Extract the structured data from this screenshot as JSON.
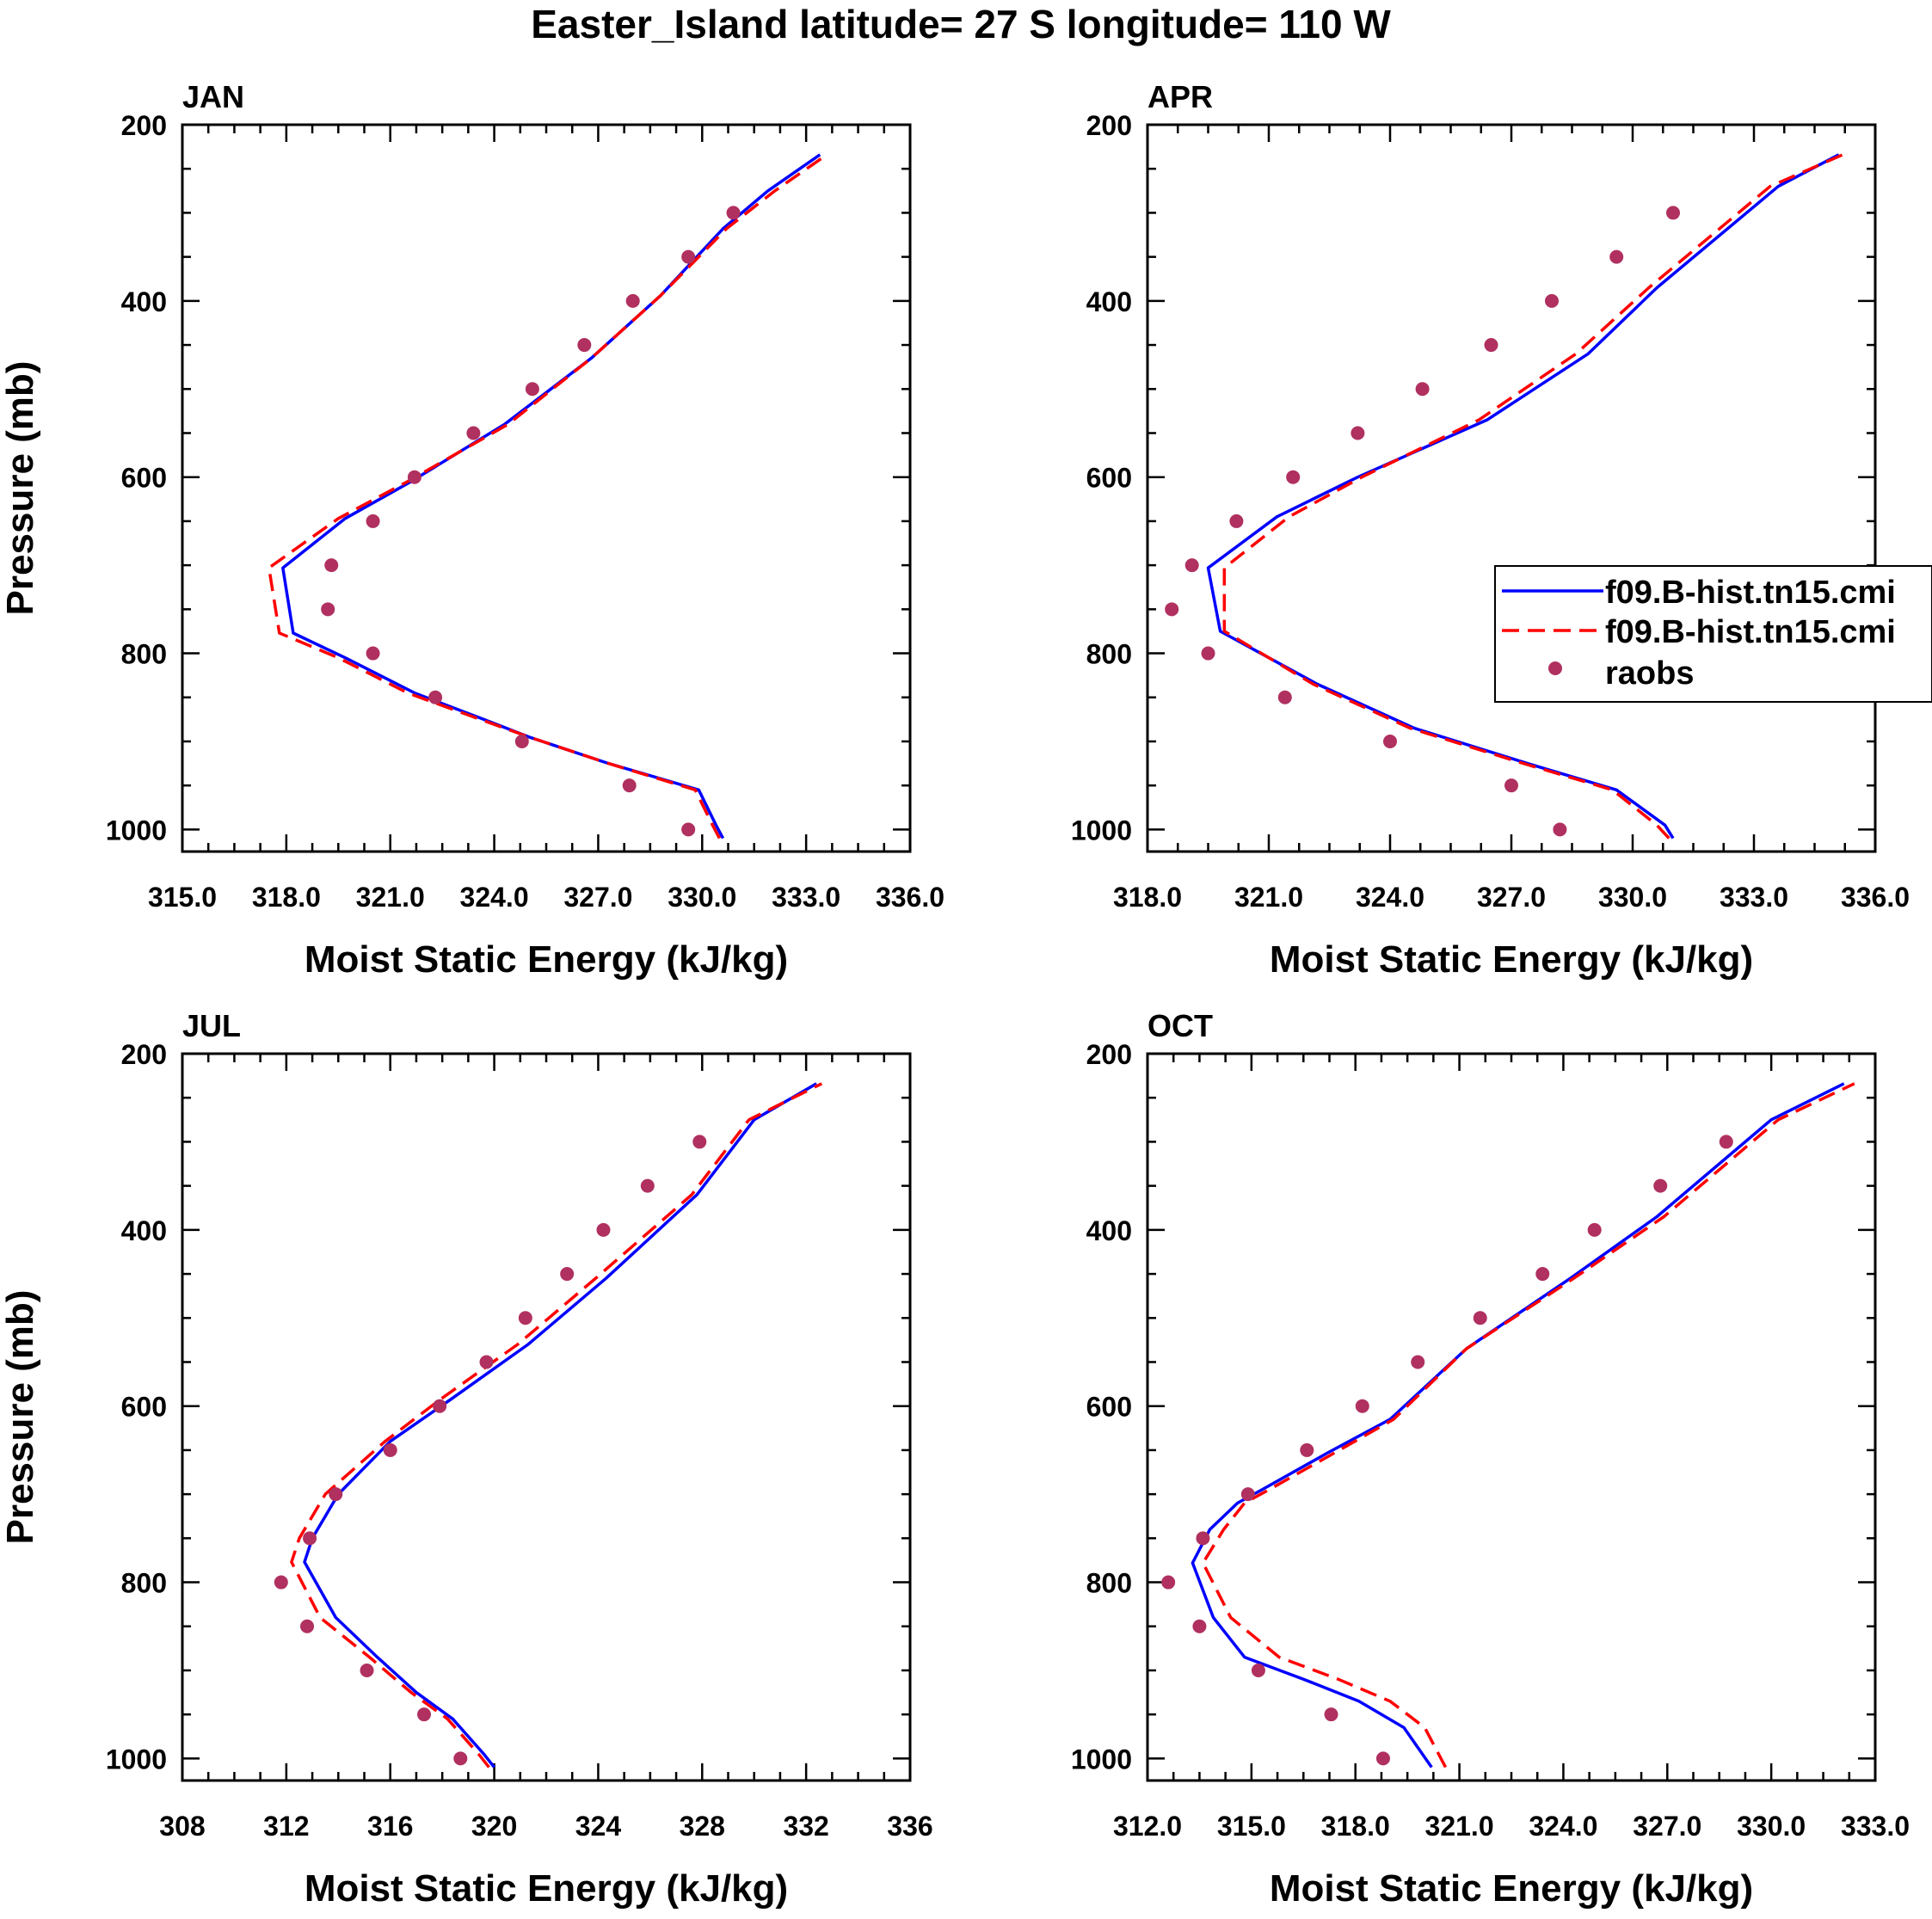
{
  "figure_title": "Easter_Island  latitude= 27 S longitude= 110 W",
  "colors": {
    "model_a": "#0000ff",
    "model_b": "#ff0000",
    "raobs": "#b03060",
    "axes": "#000000"
  },
  "legend": {
    "entries": [
      "f09.B-hist.tn15.cmi",
      "f09.B-hist.tn15.cmi",
      "raobs"
    ]
  },
  "chart_data": [
    {
      "type": "line",
      "title": "JAN",
      "xlabel": "Moist Static Energy (kJ/kg)",
      "ylabel": "Pressure (mb)",
      "xlim": [
        315,
        336
      ],
      "ylim": [
        1025,
        200
      ],
      "xticks": [
        315,
        318,
        321,
        324,
        327,
        330,
        333,
        336
      ],
      "xtick_labels": [
        "315.0",
        "318.0",
        "321.0",
        "324.0",
        "327.0",
        "330.0",
        "333.0",
        "336.0"
      ],
      "yticks": [
        200,
        400,
        600,
        800,
        1000
      ],
      "ytick_labels": [
        "200",
        "400",
        "600",
        "800",
        "1000"
      ],
      "series": [
        {
          "name": "f09.B-hist.tn15.cmi",
          "style": "solid",
          "color_key": "model_a",
          "x": [
            330.6,
            330.4,
            329.9,
            327.3,
            325.0,
            323.7,
            321.7,
            319.7,
            318.2,
            317.9,
            319.7,
            321.6,
            324.3,
            326.8,
            328.8,
            330.6,
            331.9,
            333.4
          ],
          "y": [
            1010,
            995,
            955,
            925,
            895,
            875,
            845,
            805,
            777,
            703,
            647,
            605,
            540,
            465,
            394,
            318,
            275,
            234
          ]
        },
        {
          "name": "f09.B-hist.tn15.cmi",
          "style": "dashed",
          "color_key": "model_b",
          "x": [
            330.5,
            330.3,
            329.8,
            327.3,
            325.0,
            323.6,
            321.5,
            319.5,
            317.8,
            317.5,
            319.5,
            321.5,
            324.4,
            326.8,
            328.8,
            330.7,
            332.1,
            333.6
          ],
          "y": [
            1010,
            995,
            955,
            925,
            895,
            875,
            845,
            805,
            777,
            703,
            647,
            605,
            540,
            465,
            394,
            318,
            275,
            234
          ]
        },
        {
          "name": "raobs",
          "style": "markers",
          "color_key": "raobs",
          "x": [
            329.6,
            327.9,
            324.8,
            322.3,
            320.5,
            319.2,
            319.3,
            320.5,
            321.7,
            323.4,
            325.1,
            326.6,
            328.0,
            329.6,
            330.9
          ],
          "y": [
            1000,
            950,
            900,
            850,
            800,
            750,
            700,
            650,
            600,
            550,
            500,
            450,
            400,
            350,
            300
          ]
        }
      ]
    },
    {
      "type": "line",
      "title": "APR",
      "xlabel": "Moist Static Energy (kJ/kg)",
      "ylabel": "",
      "xlim": [
        318,
        336
      ],
      "ylim": [
        1025,
        200
      ],
      "xticks": [
        318,
        321,
        324,
        327,
        330,
        333,
        336
      ],
      "xtick_labels": [
        "318.0",
        "321.0",
        "324.0",
        "327.0",
        "330.0",
        "333.0",
        "336.0"
      ],
      "yticks": [
        200,
        400,
        600,
        800,
        1000
      ],
      "ytick_labels": [
        "200",
        "400",
        "600",
        "800",
        "1000"
      ],
      "series": [
        {
          "name": "f09.B-hist.tn15.cmi",
          "style": "solid",
          "color_key": "model_a",
          "x": [
            331.0,
            330.8,
            329.6,
            327.4,
            324.6,
            322.2,
            319.8,
            319.5,
            321.2,
            323.2,
            326.4,
            328.9,
            330.6,
            333.6,
            335.1
          ],
          "y": [
            1010,
            995,
            955,
            925,
            885,
            835,
            775,
            703,
            645,
            600,
            535,
            460,
            385,
            270,
            234
          ]
        },
        {
          "name": "f09.B-hist.tn15.cmi",
          "style": "dashed",
          "color_key": "model_b",
          "x": [
            330.9,
            330.6,
            329.5,
            327.3,
            324.5,
            322.1,
            319.9,
            319.9,
            321.5,
            323.3,
            326.2,
            328.6,
            330.4,
            333.4,
            335.2
          ],
          "y": [
            1010,
            995,
            955,
            925,
            885,
            835,
            775,
            703,
            645,
            600,
            535,
            460,
            385,
            270,
            234
          ]
        },
        {
          "name": "raobs",
          "style": "markers",
          "color_key": "raobs",
          "x": [
            328.2,
            327.0,
            324.0,
            321.4,
            319.5,
            318.6,
            319.1,
            320.2,
            321.6,
            323.2,
            324.8,
            326.5,
            328.0,
            329.6,
            331.0
          ],
          "y": [
            1000,
            950,
            900,
            850,
            800,
            750,
            700,
            650,
            600,
            550,
            500,
            450,
            400,
            350,
            300
          ]
        }
      ]
    },
    {
      "type": "line",
      "title": "JUL",
      "xlabel": "Moist Static Energy (kJ/kg)",
      "ylabel": "Pressure (mb)",
      "xlim": [
        308,
        336
      ],
      "ylim": [
        1025,
        200
      ],
      "xticks": [
        308,
        312,
        316,
        320,
        324,
        328,
        332,
        336
      ],
      "xtick_labels": [
        "308",
        "312",
        "316",
        "320",
        "324",
        "328",
        "332",
        "336"
      ],
      "yticks": [
        200,
        400,
        600,
        800,
        1000
      ],
      "ytick_labels": [
        "200",
        "400",
        "600",
        "800",
        "1000"
      ],
      "series": [
        {
          "name": "f09.B-hist.tn15.cmi",
          "style": "solid",
          "color_key": "model_a",
          "x": [
            320.0,
            319.6,
            318.4,
            317.0,
            315.5,
            313.9,
            312.7,
            313.0,
            314.0,
            316.0,
            318.3,
            321.3,
            324.3,
            327.8,
            330.0,
            332.4
          ],
          "y": [
            1010,
            995,
            955,
            925,
            885,
            840,
            777,
            750,
            700,
            640,
            593,
            530,
            455,
            360,
            275,
            234
          ]
        },
        {
          "name": "f09.B-hist.tn15.cmi",
          "style": "dashed",
          "color_key": "model_b",
          "x": [
            319.8,
            319.4,
            318.2,
            316.8,
            315.2,
            313.3,
            312.2,
            312.5,
            313.5,
            315.8,
            317.9,
            320.9,
            323.9,
            327.6,
            329.8,
            332.6
          ],
          "y": [
            1010,
            995,
            955,
            925,
            885,
            840,
            777,
            750,
            700,
            640,
            593,
            530,
            455,
            360,
            275,
            234
          ]
        },
        {
          "name": "raobs",
          "style": "markers",
          "color_key": "raobs",
          "x": [
            318.7,
            317.3,
            315.1,
            312.8,
            311.8,
            312.9,
            313.9,
            316.0,
            317.9,
            319.7,
            321.2,
            322.8,
            324.2,
            325.9,
            327.9
          ],
          "y": [
            1000,
            950,
            900,
            850,
            800,
            750,
            700,
            650,
            600,
            550,
            500,
            450,
            400,
            350,
            300
          ]
        }
      ]
    },
    {
      "type": "line",
      "title": "OCT",
      "xlabel": "Moist Static Energy (kJ/kg)",
      "ylabel": "",
      "xlim": [
        312,
        333
      ],
      "ylim": [
        1025,
        200
      ],
      "xticks": [
        312,
        315,
        318,
        321,
        324,
        327,
        330,
        333
      ],
      "xtick_labels": [
        "312.0",
        "315.0",
        "318.0",
        "321.0",
        "324.0",
        "327.0",
        "330.0",
        "333.0"
      ],
      "yticks": [
        200,
        400,
        600,
        800,
        1000
      ],
      "ytick_labels": [
        "200",
        "400",
        "600",
        "800",
        "1000"
      ],
      "series": [
        {
          "name": "f09.B-hist.tn15.cmi",
          "style": "solid",
          "color_key": "model_a",
          "x": [
            320.2,
            319.4,
            318.1,
            316.5,
            314.8,
            313.9,
            313.3,
            313.8,
            314.6,
            315.3,
            317.2,
            319.0,
            321.2,
            324.2,
            326.7,
            330.0,
            332.1
          ],
          "y": [
            1010,
            965,
            935,
            910,
            885,
            840,
            778,
            740,
            710,
            695,
            653,
            615,
            535,
            455,
            385,
            275,
            234
          ]
        },
        {
          "name": "f09.B-hist.tn15.cmi",
          "style": "dashed",
          "color_key": "model_b",
          "x": [
            320.6,
            320.0,
            319.0,
            317.5,
            315.8,
            314.4,
            313.6,
            314.2,
            314.8,
            315.5,
            317.4,
            319.1,
            321.2,
            324.3,
            326.9,
            330.2,
            332.4
          ],
          "y": [
            1010,
            965,
            935,
            910,
            885,
            840,
            778,
            740,
            710,
            695,
            653,
            615,
            535,
            455,
            385,
            275,
            234
          ]
        },
        {
          "name": "raobs",
          "style": "markers",
          "color_key": "raobs",
          "x": [
            318.8,
            317.3,
            315.2,
            313.5,
            312.6,
            313.6,
            314.9,
            316.6,
            318.2,
            319.8,
            321.6,
            323.4,
            324.9,
            326.8,
            328.7
          ],
          "y": [
            1000,
            950,
            900,
            850,
            800,
            750,
            700,
            650,
            600,
            550,
            500,
            450,
            400,
            350,
            300
          ]
        }
      ]
    }
  ]
}
